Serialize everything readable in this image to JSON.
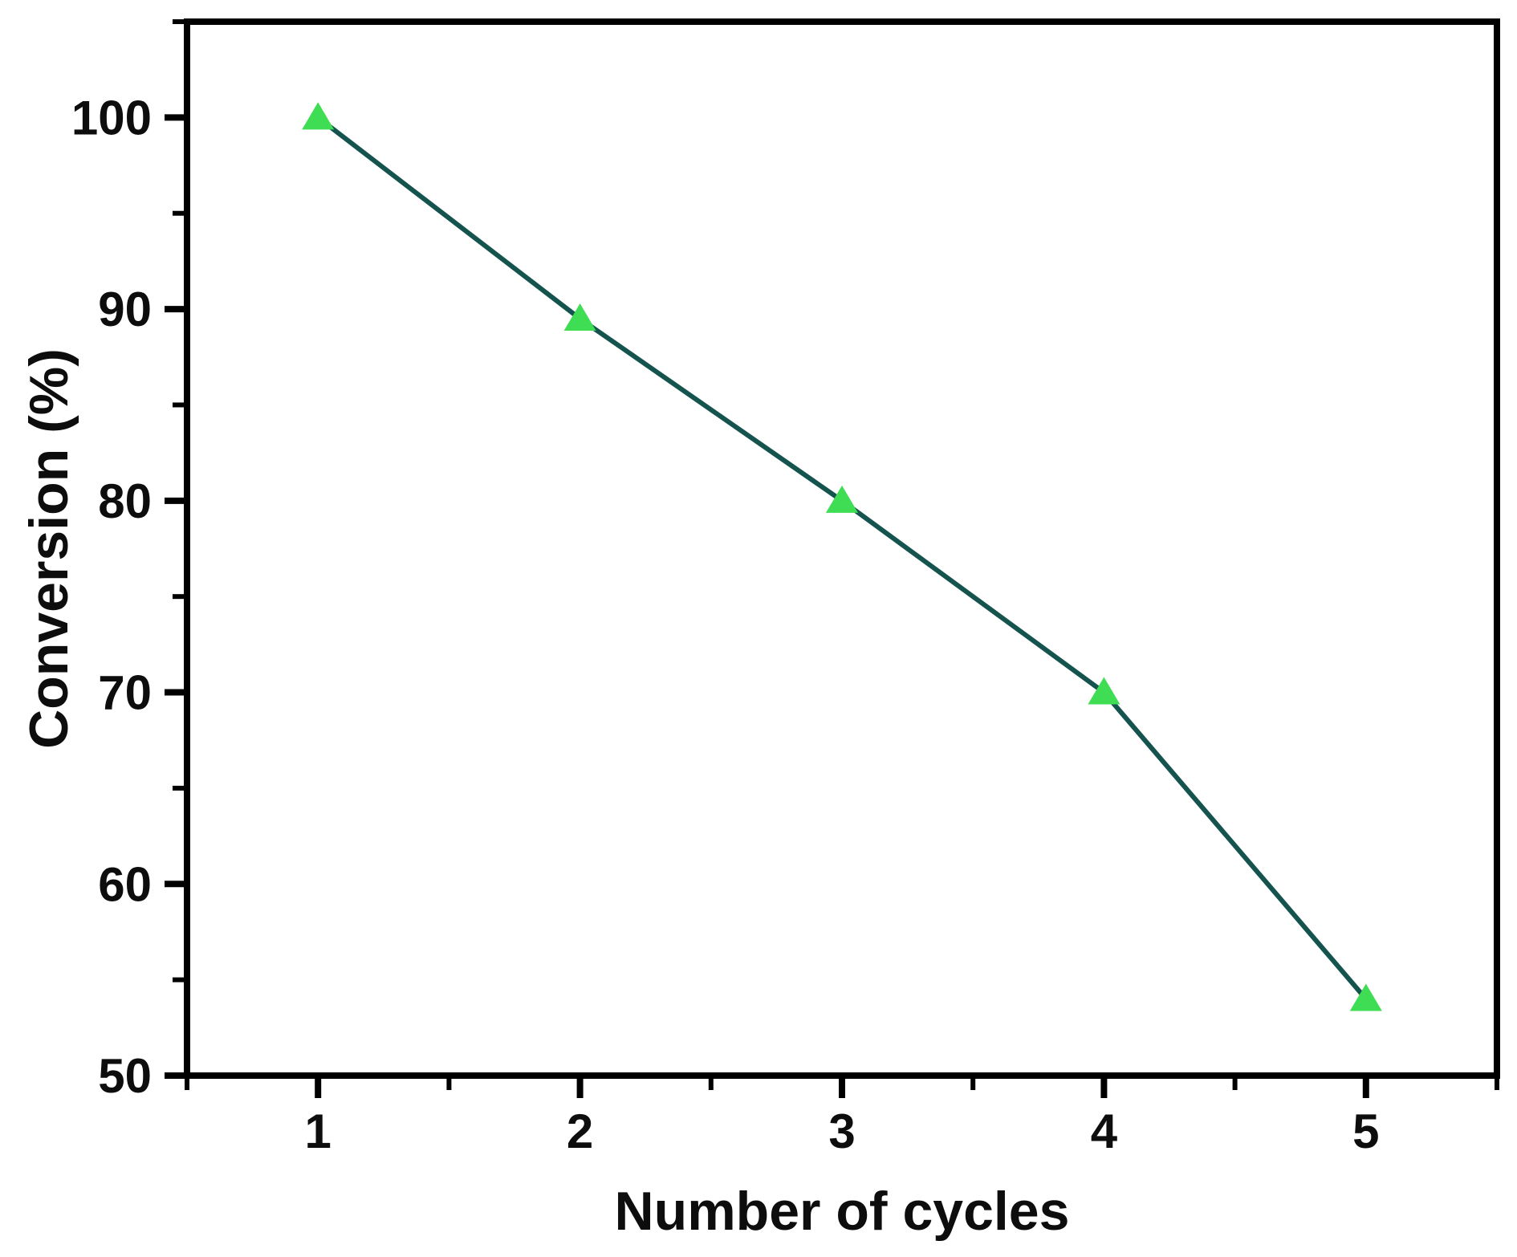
{
  "figure": {
    "background": "#ffffff"
  },
  "chart_data": {
    "type": "line",
    "title": "",
    "xlabel": "Number of cycles",
    "ylabel": "Conversion (%)",
    "x": [
      1,
      2,
      3,
      4,
      5
    ],
    "values": [
      100,
      89.5,
      80,
      70,
      54
    ],
    "series": [
      {
        "name": "Conversion",
        "values": [
          100,
          89.5,
          80,
          70,
          54
        ]
      }
    ],
    "xlim": [
      0.5,
      5.5
    ],
    "ylim": [
      50,
      105
    ],
    "x_major_ticks": [
      1,
      2,
      3,
      4,
      5
    ],
    "x_tick_labels": [
      "1",
      "2",
      "3",
      "4",
      "5"
    ],
    "x_minor_ticks": [
      0.5,
      1.5,
      2.5,
      3.5,
      4.5,
      5.5
    ],
    "y_major_ticks": [
      50,
      60,
      70,
      80,
      90,
      100
    ],
    "y_tick_labels": [
      "50",
      "60",
      "70",
      "80",
      "90",
      "100"
    ],
    "y_minor_ticks": [
      55,
      65,
      75,
      85,
      95,
      105
    ],
    "grid": false,
    "legend": "none",
    "marker": "triangle-up",
    "colors": {
      "line": "#15544e",
      "marker": "#3edd53",
      "axis": "#000000",
      "text": "#0d0d0d",
      "background": "#ffffff"
    }
  }
}
